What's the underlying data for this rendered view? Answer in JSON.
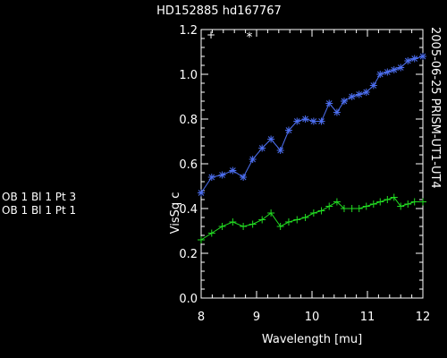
{
  "chart_data": {
    "type": "line",
    "title": "HD152885 hd167767",
    "xlabel": "Wavelength  [mu]",
    "ylabel": "VisSq c",
    "side_annotation": "2005-06-25 PRISM-UT1-UT4",
    "xlim": [
      8,
      12
    ],
    "ylim": [
      0,
      1.2
    ],
    "x_ticks": [
      8,
      9,
      10,
      11,
      12
    ],
    "x_tick_labels": [
      "8",
      "9",
      "10",
      "11",
      "12"
    ],
    "y_ticks": [
      0,
      0.2,
      0.4,
      0.6,
      0.8,
      1.0,
      1.2
    ],
    "y_tick_labels": [
      "0.0",
      "0.2",
      "0.4",
      "0.6",
      "0.8",
      "1.0",
      "1.2"
    ],
    "grid": false,
    "legend_placement": "left",
    "plot_symbols": [
      "+",
      "*"
    ],
    "series": [
      {
        "name": "OB  1  Bl  1  Pt  3",
        "color": "#4d6ff0",
        "marker": "asterisk",
        "x": [
          8.0,
          8.19,
          8.38,
          8.57,
          8.76,
          8.93,
          9.1,
          9.26,
          9.43,
          9.58,
          9.73,
          9.88,
          10.03,
          10.17,
          10.31,
          10.45,
          10.58,
          10.72,
          10.85,
          10.98,
          11.11,
          11.23,
          11.36,
          11.48,
          11.6,
          11.73,
          11.85,
          12.0
        ],
        "values": [
          0.47,
          0.54,
          0.55,
          0.57,
          0.54,
          0.62,
          0.67,
          0.71,
          0.66,
          0.75,
          0.79,
          0.8,
          0.79,
          0.79,
          0.87,
          0.83,
          0.88,
          0.9,
          0.91,
          0.92,
          0.95,
          1.0,
          1.01,
          1.02,
          1.03,
          1.06,
          1.07,
          1.08
        ]
      },
      {
        "name": "OB  1  Bl  1  Pt  1",
        "color": "#22dd22",
        "marker": "plus",
        "x": [
          8.0,
          8.19,
          8.38,
          8.57,
          8.76,
          8.93,
          9.1,
          9.26,
          9.43,
          9.58,
          9.73,
          9.88,
          10.03,
          10.17,
          10.31,
          10.45,
          10.58,
          10.72,
          10.85,
          10.98,
          11.11,
          11.23,
          11.36,
          11.48,
          11.6,
          11.73,
          11.85,
          12.0
        ],
        "values": [
          0.26,
          0.29,
          0.32,
          0.34,
          0.32,
          0.33,
          0.35,
          0.38,
          0.32,
          0.34,
          0.35,
          0.36,
          0.38,
          0.39,
          0.41,
          0.43,
          0.4,
          0.4,
          0.4,
          0.41,
          0.42,
          0.43,
          0.44,
          0.45,
          0.41,
          0.42,
          0.43,
          0.43
        ]
      }
    ]
  }
}
